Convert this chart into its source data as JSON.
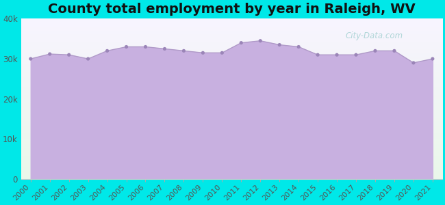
{
  "title": "County total employment by year in Raleigh, WV",
  "years": [
    2000,
    2001,
    2002,
    2003,
    2004,
    2005,
    2006,
    2007,
    2008,
    2009,
    2010,
    2011,
    2012,
    2013,
    2014,
    2015,
    2016,
    2017,
    2018,
    2019,
    2020,
    2021
  ],
  "values": [
    30000,
    31200,
    31000,
    30000,
    32000,
    33000,
    33000,
    32500,
    32000,
    31500,
    31500,
    34000,
    34500,
    33500,
    33000,
    31000,
    31000,
    31000,
    32000,
    32000,
    29000,
    30000
  ],
  "line_color": "#b09ac8",
  "fill_color": "#c8b0e0",
  "fill_alpha": 1.0,
  "marker_color": "#9b85b8",
  "outer_bg": "#00e8e8",
  "plot_bg_top": "#eaf8ea",
  "plot_bg_bottom": "#f8f4ff",
  "ylim": [
    0,
    40000
  ],
  "yticks": [
    0,
    10000,
    20000,
    30000,
    40000
  ],
  "ytick_labels": [
    "0",
    "10k",
    "20k",
    "30k",
    "40k"
  ],
  "title_fontsize": 14,
  "tick_fontsize": 8.5,
  "watermark": "City-Data.com"
}
